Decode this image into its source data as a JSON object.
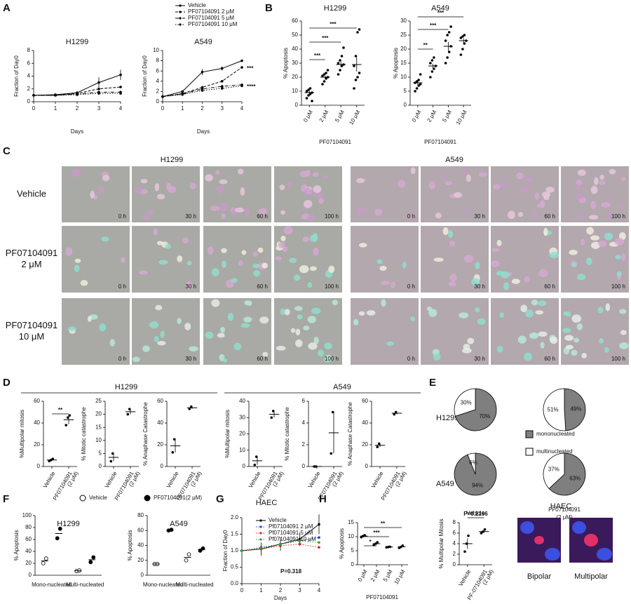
{
  "panel_labels": [
    "A",
    "B",
    "C",
    "D",
    "E",
    "F",
    "G",
    "H"
  ],
  "panel_c": {
    "titles": [
      "H1299",
      "A549"
    ],
    "rows": [
      [
        "Vehicle"
      ],
      [
        "PF07104091",
        "2 μM"
      ],
      [
        "PF07104091",
        "10 μM"
      ]
    ],
    "times": [
      "0 h",
      "30 h",
      "60 h",
      "100 h"
    ]
  },
  "panel_d": {
    "groups": [
      "H1299",
      "A549"
    ]
  },
  "panel_e": {
    "rows": [
      "H1299",
      "A549"
    ],
    "columns": [
      [
        "Vehicle"
      ],
      [
        "PF07104091",
        "(2 μM)"
      ]
    ],
    "legend": [
      "mononucleated",
      "multinucleated"
    ]
  },
  "panel_h": {
    "title": "HAEC",
    "labels": [
      "Bipolar",
      "Multipolar"
    ]
  },
  "chart_data": [
    {
      "type": "line",
      "title": "H1299",
      "xlabel": "Days",
      "ylabel": "Fraction of Day0",
      "x": [
        0,
        1,
        2,
        3,
        4
      ],
      "xlim": [
        0,
        4
      ],
      "ylim": [
        0,
        8
      ],
      "xticks": [
        0,
        1,
        2,
        3,
        4
      ],
      "yticks": [
        0,
        2,
        4,
        6,
        8
      ],
      "series": [
        {
          "name": "Vehicle",
          "color": "#000000",
          "dash": "solid",
          "values": [
            1,
            1.1,
            1.4,
            3,
            4.2
          ],
          "errors": [
            0,
            0.1,
            0.2,
            0.8,
            0.8
          ]
        },
        {
          "name": "PF07104091 2 μM",
          "color": "#000000",
          "dash": "dashed",
          "values": [
            1,
            1,
            1.3,
            2,
            2.3
          ]
        },
        {
          "name": "PF07104091 5 μM",
          "color": "#000000",
          "dash": "dashdot",
          "values": [
            1,
            1,
            1.2,
            1.5,
            1.5
          ]
        },
        {
          "name": "PF07104091 10 μM",
          "color": "#000000",
          "dash": "dotted",
          "values": [
            1,
            1,
            1.1,
            1.3,
            1.3
          ]
        }
      ]
    },
    {
      "type": "line",
      "title": "A549",
      "xlabel": "Days",
      "ylabel": "Fraction of Day0",
      "x": [
        0,
        1,
        2,
        3,
        4
      ],
      "xlim": [
        0,
        4
      ],
      "ylim": [
        0,
        10
      ],
      "xticks": [
        0,
        1,
        2,
        3,
        4
      ],
      "yticks": [
        0,
        2,
        4,
        6,
        8,
        10
      ],
      "annotations": [
        "***",
        "****"
      ],
      "series": [
        {
          "color": "#000000",
          "dash": "solid",
          "values": [
            1,
            2,
            5.8,
            6.5,
            8
          ],
          "errors": [
            0,
            0.1,
            0.6,
            0.4,
            0.2
          ]
        },
        {
          "color": "#000000",
          "dash": "dashed",
          "values": [
            1,
            1.6,
            2.8,
            4,
            6.7
          ]
        },
        {
          "color": "#000000",
          "dash": "dashdot",
          "values": [
            1,
            1.5,
            2.5,
            3,
            3.3
          ]
        },
        {
          "color": "#000000",
          "dash": "dotted",
          "values": [
            1,
            1.4,
            2.2,
            2.6,
            3.1
          ]
        }
      ]
    },
    {
      "type": "dot",
      "title": "H1299",
      "xlabel": "PF07104091",
      "ylabel": "% Apoptosis",
      "categories": [
        "0 μM",
        "2 μM",
        "5 μM",
        "10 μM"
      ],
      "ylim": [
        0,
        60
      ],
      "yticks": [
        0,
        10,
        20,
        30,
        40,
        50,
        60
      ],
      "annotations": [
        "***",
        "***",
        "***"
      ],
      "points": [
        [
          5,
          7,
          8,
          9,
          10,
          11,
          12,
          3
        ],
        [
          15,
          17,
          19,
          20,
          21,
          22,
          23,
          25
        ],
        [
          22,
          25,
          28,
          29,
          30,
          32,
          35,
          41
        ],
        [
          12,
          18,
          20,
          23,
          28,
          35,
          52,
          54
        ]
      ],
      "means": [
        9,
        20,
        29,
        29
      ],
      "errors": [
        1.5,
        1.2,
        2,
        5
      ]
    },
    {
      "type": "dot",
      "title": "A549",
      "xlabel": "PF07104091",
      "ylabel": "% Apoptosis",
      "categories": [
        "0 μM",
        "2 μM",
        "5 μM",
        "10 μM"
      ],
      "ylim": [
        0,
        30
      ],
      "yticks": [
        0,
        5,
        10,
        15,
        20,
        25,
        30
      ],
      "annotations": [
        "**",
        "***",
        "***"
      ],
      "points": [
        [
          5,
          6,
          7,
          7.5,
          8,
          8.5,
          9,
          11
        ],
        [
          10,
          12,
          13,
          14,
          15,
          16,
          17
        ],
        [
          15,
          17,
          19,
          21,
          23,
          25,
          26,
          28
        ],
        [
          18,
          20,
          22,
          23,
          24,
          24.5,
          25
        ]
      ],
      "means": [
        8,
        14,
        21,
        23
      ],
      "errors": [
        0.7,
        0.8,
        1.5,
        0.9
      ]
    },
    {
      "type": "dot",
      "ylabel": "%Multipolar mitosis",
      "categories": [
        [
          "Vehicle"
        ],
        [
          "PF07104091",
          "(2 μM)"
        ]
      ],
      "ylim": [
        0,
        60
      ],
      "yticks": [
        0,
        20,
        40,
        60
      ],
      "annotations": [
        "**"
      ],
      "points": [
        [
          5,
          6,
          7
        ],
        [
          38,
          45,
          47
        ]
      ],
      "means": [
        6,
        43
      ],
      "errors": [
        1,
        4
      ]
    },
    {
      "type": "dot",
      "ylabel": "% Mitotic catastrophe",
      "categories": [
        [
          "Vehicle"
        ],
        [
          "PF07104091",
          "(2 μM)"
        ]
      ],
      "ylim": [
        0,
        25
      ],
      "yticks": [
        0,
        5,
        10,
        15,
        20,
        25
      ],
      "points": [
        [
          2,
          5
        ],
        [
          20,
          22
        ]
      ],
      "means": [
        3.5,
        21
      ],
      "errors": [
        1.5,
        1
      ]
    },
    {
      "type": "dot",
      "ylabel": "% Anaphase Catastrophe",
      "categories": [
        [
          "Vehicle"
        ],
        [
          "PF07104091",
          "(2 μM)"
        ]
      ],
      "ylim": [
        0,
        60
      ],
      "yticks": [
        0,
        20,
        40,
        60
      ],
      "points": [
        [
          13,
          25
        ],
        [
          53,
          55
        ]
      ],
      "means": [
        19,
        54
      ],
      "errors": [
        6,
        1
      ]
    },
    {
      "type": "dot",
      "ylabel": "%Multipolar mitosis",
      "categories": [
        [
          "Vehicle"
        ],
        [
          "PF07104091",
          "(2 μM)"
        ]
      ],
      "ylim": [
        0,
        40
      ],
      "yticks": [
        0,
        10,
        20,
        30,
        40
      ],
      "points": [
        [
          1,
          6
        ],
        [
          30,
          34
        ]
      ],
      "means": [
        3.5,
        32
      ],
      "errors": [
        2.5,
        2
      ]
    },
    {
      "type": "dot",
      "ylabel": "% Mitotic catastrophe",
      "categories": [
        [
          "Vehicle"
        ],
        [
          "PF07104091",
          "(2 μM)"
        ]
      ],
      "ylim": [
        0,
        6
      ],
      "yticks": [
        0,
        2,
        4,
        6
      ],
      "points": [
        [
          0,
          0
        ],
        [
          1.2,
          5
        ]
      ],
      "means": [
        0,
        3.1
      ],
      "errors": [
        0,
        1.9
      ]
    },
    {
      "type": "dot",
      "ylabel": "% Anaphase Catastrophe",
      "categories": [
        [
          "Vehicle"
        ],
        [
          "PF07104091",
          "(2 μM)"
        ]
      ],
      "ylim": [
        0,
        60
      ],
      "yticks": [
        0,
        20,
        40,
        60
      ],
      "points": [
        [
          18,
          21
        ],
        [
          48,
          50
        ]
      ],
      "means": [
        19.5,
        49
      ],
      "errors": [
        1.5,
        1
      ]
    },
    {
      "type": "pie",
      "values": [
        70,
        30
      ],
      "value_labels": [
        "70%",
        "30%"
      ],
      "colors": [
        "#7f7f7f",
        "#ffffff"
      ]
    },
    {
      "type": "pie",
      "values": [
        49,
        51
      ],
      "value_labels": [
        "49%",
        "51%"
      ],
      "colors": [
        "#7f7f7f",
        "#ffffff"
      ]
    },
    {
      "type": "pie",
      "values": [
        94,
        6
      ],
      "value_labels": [
        "94%",
        "6%"
      ],
      "colors": [
        "#7f7f7f",
        "#ffffff"
      ]
    },
    {
      "type": "pie",
      "values": [
        63,
        37
      ],
      "value_labels": [
        "63%",
        "37%"
      ],
      "colors": [
        "#7f7f7f",
        "#ffffff"
      ]
    },
    {
      "type": "dotgroup",
      "title": "H1299",
      "ylabel": "% Apoptosis",
      "categories": [
        "Mono-nucleated",
        "Multi-nucleated"
      ],
      "ylim": [
        0,
        100
      ],
      "yticks": [
        0,
        20,
        40,
        60,
        80,
        100
      ],
      "series": [
        {
          "name": "Vehicle",
          "marker": "open",
          "values": [
            [
              20,
              28
            ],
            [
              7,
              8
            ]
          ],
          "means": [
            24,
            7.5
          ]
        },
        {
          "name": "PF07104091(2 μM)",
          "marker": "filled",
          "values": [
            [
              62,
              78
            ],
            [
              22,
              30
            ]
          ],
          "means": [
            70,
            26
          ]
        }
      ]
    },
    {
      "type": "dotgroup",
      "title": "A549",
      "ylabel": "% Apoptosis",
      "categories": [
        "Mono-nucleated",
        "Multi-nucleated"
      ],
      "ylim": [
        0,
        80
      ],
      "yticks": [
        0,
        20,
        40,
        60,
        80
      ],
      "series": [
        {
          "marker": "open",
          "values": [
            [
              15,
              15
            ],
            [
              20,
              28
            ]
          ],
          "means": [
            15,
            24
          ]
        },
        {
          "marker": "filled",
          "values": [
            [
              60,
              61
            ],
            [
              33,
              36
            ]
          ],
          "means": [
            60.5,
            34.5
          ]
        }
      ]
    },
    {
      "type": "line",
      "title": "HAEC",
      "xlabel": "Days",
      "ylabel": "Fraction of Day0",
      "x": [
        0,
        1,
        2,
        3,
        4
      ],
      "xlim": [
        0,
        4
      ],
      "ylim": [
        0,
        2
      ],
      "xticks": [
        0,
        1,
        2,
        3,
        4
      ],
      "yticks": [
        {
          "value": 0,
          "label": "0.0"
        },
        0.5,
        {
          "value": 1,
          "label": "1.0"
        },
        1.5,
        {
          "value": 2,
          "label": "2.0"
        }
      ],
      "annotations": [
        "P=0.318"
      ],
      "series": [
        {
          "name": "Vehicle",
          "color": "#000000",
          "dash": "solid",
          "values": [
            1,
            1.05,
            1.2,
            1.35,
            1.8
          ],
          "errors": [
            0,
            0.2,
            0.2,
            0.2,
            0.3
          ]
        },
        {
          "name": "Pf07104091 2 μM",
          "color": "#1f3fd6",
          "dash": "dotted",
          "values": [
            1,
            1.1,
            1.2,
            1.3,
            1.4
          ]
        },
        {
          "name": "Pf07104091 5 μM",
          "color": "#e0201b",
          "dash": "dotted",
          "values": [
            1,
            1.05,
            1.15,
            1.2,
            1.1
          ]
        },
        {
          "name": "Pf07104091 10 μM",
          "color": "#2ca02c",
          "dash": "dotted",
          "values": [
            1,
            1.08,
            1.2,
            1.3,
            1.25
          ]
        }
      ]
    },
    {
      "type": "dot",
      "xlabel": "PF07104091",
      "ylabel": "% Apoptosis",
      "categories": [
        "0 μM",
        "2 μM",
        "5 μM",
        "10 μM"
      ],
      "ylim": [
        0,
        15
      ],
      "yticks": [
        0,
        5,
        10,
        15
      ],
      "annotations": [
        "*",
        "***",
        "**"
      ],
      "points": [
        [
          9.8,
          10.2,
          10.5
        ],
        [
          7,
          7.5,
          8
        ],
        [
          6.2,
          6.3,
          6.4
        ],
        [
          6,
          6.3,
          6.8
        ]
      ],
      "means": [
        10.2,
        7.5,
        6.3,
        6.4
      ],
      "errors": [
        0.3,
        0.4,
        0.1,
        0.3
      ]
    },
    {
      "type": "dot",
      "ylabel": "% Multipolar Mitosis",
      "categories": [
        [
          "Vehicle"
        ],
        [
          "PF-07104091",
          "(2 μM)"
        ]
      ],
      "ylim": [
        0,
        8
      ],
      "yticks": [
        0,
        2,
        4,
        6,
        8
      ],
      "annotations": [
        "P=0.2196"
      ],
      "points": [
        [
          2.5,
          4,
          5.5
        ],
        [
          6,
          6.3,
          6.7
        ]
      ],
      "means": [
        4,
        6.3
      ],
      "errors": [
        1,
        0.3
      ]
    }
  ]
}
